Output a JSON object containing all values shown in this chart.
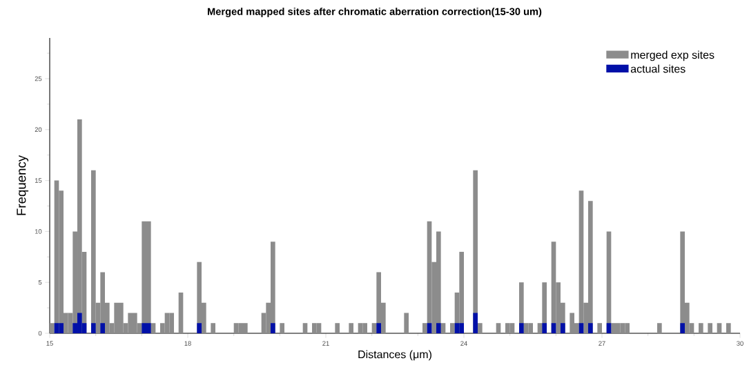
{
  "chart_data": {
    "type": "histogram",
    "title": "Merged mapped sites after chromatic aberration correction(15-30 um)",
    "xlabel": "Distances (μm)",
    "ylabel": "Frequency",
    "bins": [
      15,
      15.1,
      15.2,
      15.3,
      15.4,
      15.5,
      15.6,
      15.7,
      15.8,
      15.9,
      16,
      16.1,
      16.2,
      16.3,
      16.4,
      16.5,
      16.6,
      16.7,
      16.8,
      16.9,
      17,
      17.1,
      17.2,
      17.3,
      17.4,
      17.5,
      17.6,
      17.7,
      17.8,
      17.9,
      18,
      18.1,
      18.2,
      18.3,
      18.4,
      18.5,
      18.6,
      18.7,
      18.8,
      18.9,
      19,
      19.1,
      19.2,
      19.3,
      19.4,
      19.5,
      19.6,
      19.7,
      19.8,
      19.9,
      20,
      20.1,
      20.2,
      20.3,
      20.4,
      20.5,
      20.6,
      20.7,
      20.8,
      20.9,
      21,
      21.1,
      21.2,
      21.3,
      21.4,
      21.5,
      21.6,
      21.7,
      21.8,
      21.9,
      22,
      22.1,
      22.2,
      22.3,
      22.4,
      22.5,
      22.6,
      22.7,
      22.8,
      22.9,
      23,
      23.1,
      23.2,
      23.3,
      23.4,
      23.5,
      23.6,
      23.7,
      23.8,
      23.9,
      24,
      24.1,
      24.2,
      24.3,
      24.4,
      24.5,
      24.6,
      24.7,
      24.8,
      24.9,
      25,
      25.1,
      25.2,
      25.3,
      25.4,
      25.5,
      25.6,
      25.7,
      25.8,
      25.9,
      26,
      26.1,
      26.2,
      26.3,
      26.4,
      26.5,
      26.6,
      26.7,
      26.8,
      26.9,
      27,
      27.1,
      27.2,
      27.3,
      27.4,
      27.5,
      27.6,
      27.7,
      27.8,
      27.9,
      28,
      28.1,
      28.2,
      28.3,
      28.4,
      28.5,
      28.6,
      28.7,
      28.8,
      28.9,
      29,
      29.1,
      29.2,
      29.3,
      29.4,
      29.5,
      29.6,
      29.7,
      29.8,
      29.9,
      30
    ],
    "series": [
      {
        "name": "merged exp sites",
        "color": "#8c8c8c",
        "values": [
          1,
          15,
          14,
          2,
          2,
          10,
          21,
          8,
          0,
          16,
          3,
          6,
          3,
          1,
          3,
          3,
          1,
          2,
          2,
          1,
          11,
          11,
          1,
          0,
          1,
          2,
          2,
          0,
          4,
          0,
          0,
          0,
          7,
          3,
          0,
          1,
          0,
          0,
          0,
          0,
          1,
          1,
          1,
          0,
          0,
          0,
          2,
          3,
          9,
          0,
          1,
          0,
          0,
          0,
          0,
          1,
          0,
          1,
          1,
          0,
          0,
          0,
          1,
          0,
          0,
          1,
          0,
          1,
          1,
          0,
          1,
          6,
          3,
          0,
          0,
          0,
          0,
          2,
          0,
          0,
          0,
          1,
          11,
          7,
          10,
          1,
          0,
          1,
          4,
          8,
          0,
          0,
          16,
          1,
          0,
          0,
          0,
          1,
          0,
          1,
          1,
          0,
          5,
          1,
          1,
          0,
          1,
          5,
          0,
          9,
          5,
          3,
          0,
          2,
          1,
          14,
          3,
          13,
          0,
          1,
          0,
          10,
          1,
          1,
          1,
          1,
          0,
          0,
          0,
          0,
          0,
          0,
          1,
          0,
          0,
          0,
          0,
          10,
          3,
          1,
          0,
          1,
          0,
          1,
          0,
          1,
          0,
          1,
          0,
          0
        ]
      },
      {
        "name": "actual sites",
        "color": "#0010a8",
        "values": [
          0,
          1,
          1,
          0,
          0,
          1,
          2,
          1,
          0,
          1,
          0,
          1,
          0,
          0,
          0,
          0,
          0,
          0,
          0,
          0,
          1,
          1,
          0,
          0,
          0,
          0,
          0,
          0,
          0,
          0,
          0,
          0,
          1,
          0,
          0,
          0,
          0,
          0,
          0,
          0,
          0,
          0,
          0,
          0,
          0,
          0,
          0,
          0,
          1,
          0,
          0,
          0,
          0,
          0,
          0,
          0,
          0,
          0,
          0,
          0,
          0,
          0,
          0,
          0,
          0,
          0,
          0,
          0,
          0,
          0,
          0,
          1,
          0,
          0,
          0,
          0,
          0,
          0,
          0,
          0,
          0,
          0,
          1,
          0,
          1,
          0,
          0,
          0,
          1,
          1,
          0,
          0,
          2,
          0,
          0,
          0,
          0,
          0,
          0,
          0,
          0,
          0,
          1,
          0,
          0,
          0,
          0,
          1,
          0,
          1,
          0,
          1,
          0,
          0,
          0,
          1,
          0,
          1,
          0,
          0,
          0,
          1,
          0,
          0,
          0,
          0,
          0,
          0,
          0,
          0,
          0,
          0,
          0,
          0,
          0,
          0,
          0,
          1,
          0,
          0,
          0,
          0,
          0,
          0,
          0,
          0,
          0,
          0,
          0,
          0
        ]
      }
    ],
    "xlim": [
      15,
      30
    ],
    "ylim": [
      0,
      29
    ],
    "xticks": [
      15,
      {
        "value": 16,
        "label": null
      },
      {
        "value": 17,
        "label": null
      },
      18,
      {
        "value": 19,
        "label": null
      },
      {
        "value": 20,
        "label": null
      },
      21,
      {
        "value": 22,
        "label": null
      },
      {
        "value": 23,
        "label": null
      },
      24,
      {
        "value": 25,
        "label": null
      },
      {
        "value": 26,
        "label": null
      },
      27,
      {
        "value": 28,
        "label": null
      },
      {
        "value": 29,
        "label": null
      },
      30
    ],
    "yticks": [
      0,
      {
        "value": 2.5,
        "label": null
      },
      5,
      {
        "value": 7.5,
        "label": null
      },
      10,
      {
        "value": 12.5,
        "label": null
      },
      15,
      {
        "value": 17.5,
        "label": null
      },
      20,
      {
        "value": 22.5,
        "label": null
      },
      25,
      {
        "value": 27.5,
        "label": null
      }
    ],
    "legend": "top right",
    "grid": false
  }
}
